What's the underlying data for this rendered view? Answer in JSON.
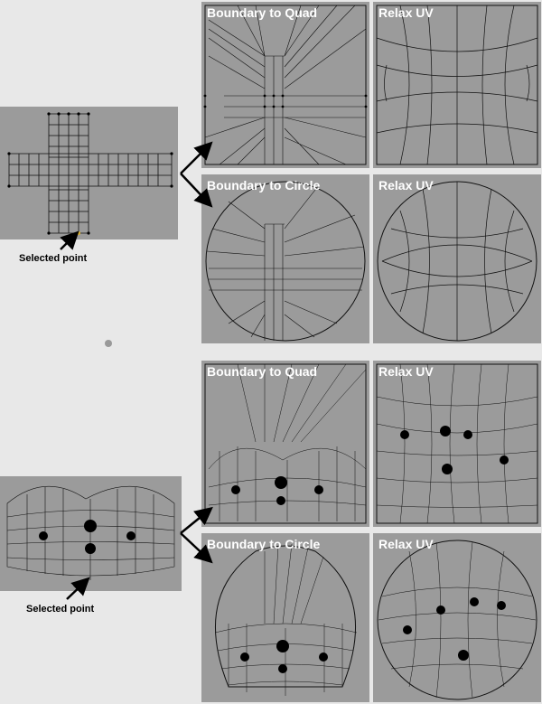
{
  "examples": [
    {
      "source_caption": "Selected point",
      "quad_title": "Boundary to Quad",
      "relax_quad_title": "Relax UV",
      "circle_title": "Boundary to Circle",
      "relax_circle_title": "Relax UV"
    },
    {
      "source_caption": "Selected point",
      "quad_title": "Boundary to Quad",
      "relax_quad_title": "Relax UV",
      "circle_title": "Boundary to Circle",
      "relax_circle_title": "Relax UV"
    }
  ]
}
